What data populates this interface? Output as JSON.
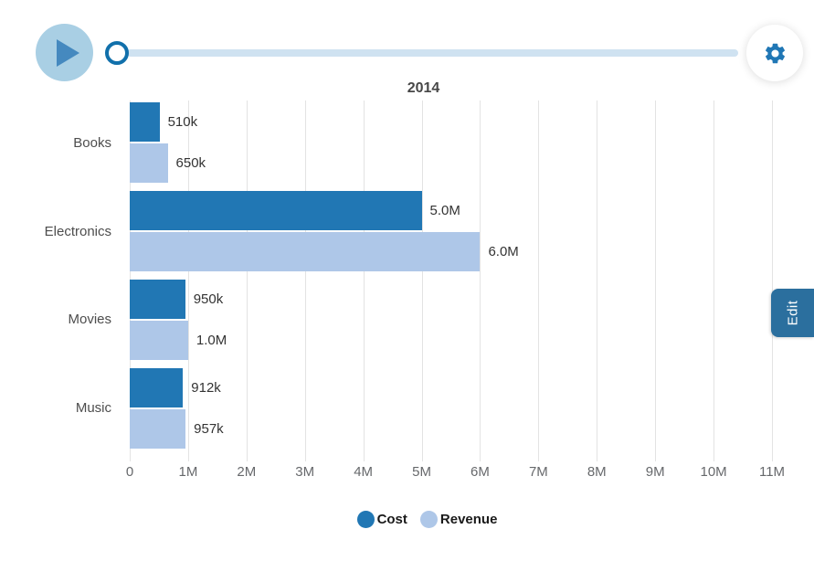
{
  "colors": {
    "accent": "#2077b5",
    "cost": "#2177b4",
    "revenue": "#aec7e8",
    "edit-bg": "#2b6f9e",
    "play-circle": "#a9cfe4",
    "play-triangle": "#4589bf",
    "slider-track": "#cfe2f1",
    "handle-border": "#1170ab",
    "gridline": "#e3e3e3"
  },
  "toolbar": {
    "play_icon": "play-triangle-icon",
    "gear_icon": "gear-icon",
    "slider_position_pct": 0
  },
  "edit_button": {
    "label": "Edit"
  },
  "chart_data": {
    "type": "bar",
    "orientation": "horizontal",
    "title": "2014",
    "categories": [
      "Books",
      "Electronics",
      "Movies",
      "Music"
    ],
    "series": [
      {
        "name": "Cost",
        "color": "#2177b4",
        "values": [
          510000,
          5000000,
          950000,
          912000
        ],
        "labels": [
          "510k",
          "5.0M",
          "950k",
          "912k"
        ]
      },
      {
        "name": "Revenue",
        "color": "#aec7e8",
        "values": [
          650000,
          6000000,
          1000000,
          957000
        ],
        "labels": [
          "650k",
          "6.0M",
          "1.0M",
          "957k"
        ]
      }
    ],
    "xlim": [
      0,
      11000000
    ],
    "x_ticks": [
      "0",
      "1M",
      "2M",
      "3M",
      "4M",
      "5M",
      "6M",
      "7M",
      "8M",
      "9M",
      "10M",
      "11M"
    ],
    "grid": true,
    "value_labels": true,
    "legend_position": "bottom"
  }
}
